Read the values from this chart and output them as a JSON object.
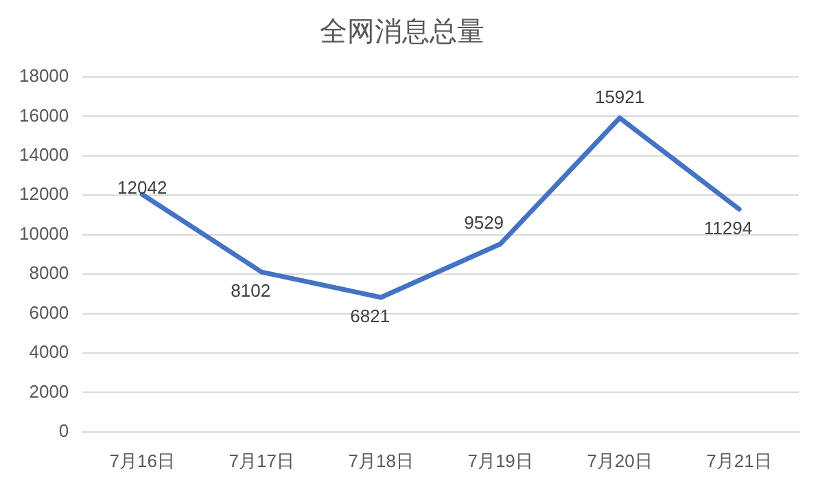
{
  "chart_data": {
    "type": "line",
    "title": "全网消息总量",
    "categories": [
      "7月16日",
      "7月17日",
      "7月18日",
      "7月19日",
      "7月20日",
      "7月21日"
    ],
    "series": [
      {
        "color": "#4472c4",
        "values": [
          12042,
          8102,
          6821,
          9529,
          15921,
          11294
        ]
      }
    ],
    "ylim": [
      0,
      18000
    ],
    "yticks": [
      0,
      2000,
      4000,
      6000,
      8000,
      10000,
      12000,
      14000,
      16000,
      18000
    ],
    "grid": "y",
    "legend": false,
    "marker": "none",
    "line_style": "solid",
    "data_labels": true
  }
}
